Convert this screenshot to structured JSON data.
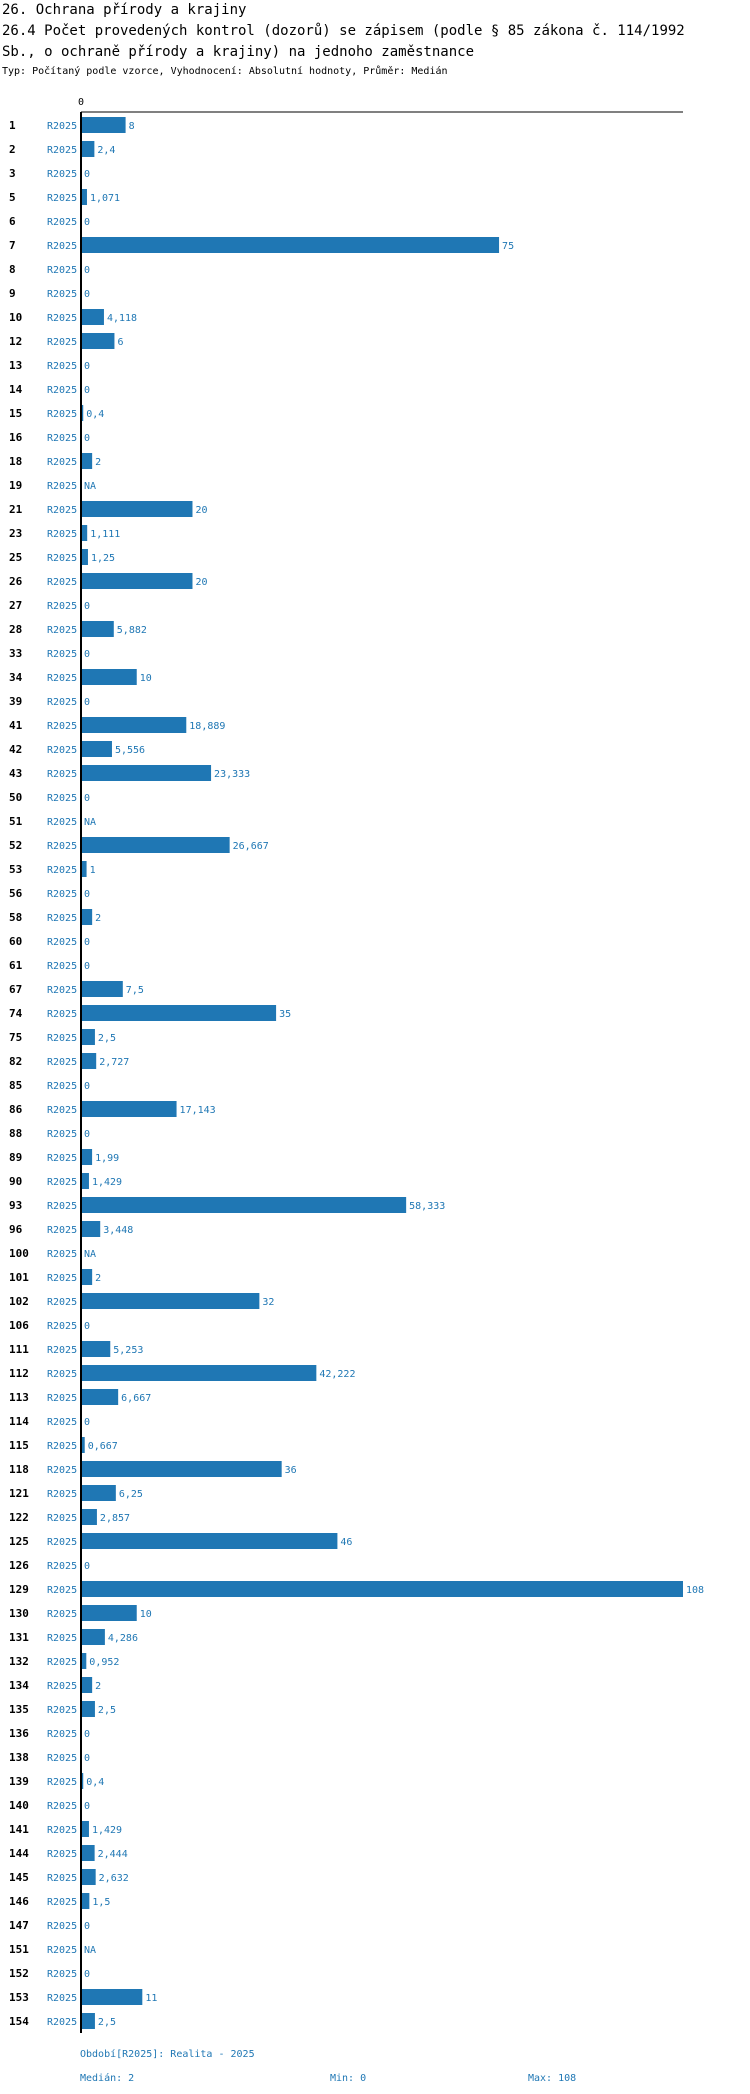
{
  "header": {
    "title_line1": "26. Ochrana přírody a krajiny",
    "title_line2": "26.4 Počet provedených kontrol (dozorů) se zápisem (podle § 85 zákona č. 114/1992",
    "title_line3": " Sb., o ochraně přírody a krajiny) na jednoho zaměstnance",
    "subtitle": "Typ: Počítaný podle vzorce, Vyhodnocení: Absolutní hodnoty, Průměr: Medián"
  },
  "chart_data": {
    "type": "bar",
    "orientation": "horizontal",
    "series_label": "R2025",
    "axis_zero_label": "0",
    "xlim": [
      0,
      108
    ],
    "colors": {
      "bar": "#1f77b4",
      "label": "#1f77b4"
    },
    "rows": [
      {
        "cat": "1",
        "value": 8,
        "label": "8"
      },
      {
        "cat": "2",
        "value": 2.4,
        "label": "2,4"
      },
      {
        "cat": "3",
        "value": 0,
        "label": "0"
      },
      {
        "cat": "5",
        "value": 1.071,
        "label": "1,071"
      },
      {
        "cat": "6",
        "value": 0,
        "label": "0"
      },
      {
        "cat": "7",
        "value": 75,
        "label": "75"
      },
      {
        "cat": "8",
        "value": 0,
        "label": "0"
      },
      {
        "cat": "9",
        "value": 0,
        "label": "0"
      },
      {
        "cat": "10",
        "value": 4.118,
        "label": "4,118"
      },
      {
        "cat": "12",
        "value": 6,
        "label": "6"
      },
      {
        "cat": "13",
        "value": 0,
        "label": "0"
      },
      {
        "cat": "14",
        "value": 0,
        "label": "0"
      },
      {
        "cat": "15",
        "value": 0.4,
        "label": "0,4"
      },
      {
        "cat": "16",
        "value": 0,
        "label": "0"
      },
      {
        "cat": "18",
        "value": 2,
        "label": "2"
      },
      {
        "cat": "19",
        "value": null,
        "label": "NA"
      },
      {
        "cat": "21",
        "value": 20,
        "label": "20"
      },
      {
        "cat": "23",
        "value": 1.111,
        "label": "1,111"
      },
      {
        "cat": "25",
        "value": 1.25,
        "label": "1,25"
      },
      {
        "cat": "26",
        "value": 20,
        "label": "20"
      },
      {
        "cat": "27",
        "value": 0,
        "label": "0"
      },
      {
        "cat": "28",
        "value": 5.882,
        "label": "5,882"
      },
      {
        "cat": "33",
        "value": 0,
        "label": "0"
      },
      {
        "cat": "34",
        "value": 10,
        "label": "10"
      },
      {
        "cat": "39",
        "value": 0,
        "label": "0"
      },
      {
        "cat": "41",
        "value": 18.889,
        "label": "18,889"
      },
      {
        "cat": "42",
        "value": 5.556,
        "label": "5,556"
      },
      {
        "cat": "43",
        "value": 23.333,
        "label": "23,333"
      },
      {
        "cat": "50",
        "value": 0,
        "label": "0"
      },
      {
        "cat": "51",
        "value": null,
        "label": "NA"
      },
      {
        "cat": "52",
        "value": 26.667,
        "label": "26,667"
      },
      {
        "cat": "53",
        "value": 1,
        "label": "1"
      },
      {
        "cat": "56",
        "value": 0,
        "label": "0"
      },
      {
        "cat": "58",
        "value": 2,
        "label": "2"
      },
      {
        "cat": "60",
        "value": 0,
        "label": "0"
      },
      {
        "cat": "61",
        "value": 0,
        "label": "0"
      },
      {
        "cat": "67",
        "value": 7.5,
        "label": "7,5"
      },
      {
        "cat": "74",
        "value": 35,
        "label": "35"
      },
      {
        "cat": "75",
        "value": 2.5,
        "label": "2,5"
      },
      {
        "cat": "82",
        "value": 2.727,
        "label": "2,727"
      },
      {
        "cat": "85",
        "value": 0,
        "label": "0"
      },
      {
        "cat": "86",
        "value": 17.143,
        "label": "17,143"
      },
      {
        "cat": "88",
        "value": 0,
        "label": "0"
      },
      {
        "cat": "89",
        "value": 1.99,
        "label": "1,99"
      },
      {
        "cat": "90",
        "value": 1.429,
        "label": "1,429"
      },
      {
        "cat": "93",
        "value": 58.333,
        "label": "58,333"
      },
      {
        "cat": "96",
        "value": 3.448,
        "label": "3,448"
      },
      {
        "cat": "100",
        "value": null,
        "label": "NA"
      },
      {
        "cat": "101",
        "value": 2,
        "label": "2"
      },
      {
        "cat": "102",
        "value": 32,
        "label": "32"
      },
      {
        "cat": "106",
        "value": 0,
        "label": "0"
      },
      {
        "cat": "111",
        "value": 5.253,
        "label": "5,253"
      },
      {
        "cat": "112",
        "value": 42.222,
        "label": "42,222"
      },
      {
        "cat": "113",
        "value": 6.667,
        "label": "6,667"
      },
      {
        "cat": "114",
        "value": 0,
        "label": "0"
      },
      {
        "cat": "115",
        "value": 0.667,
        "label": "0,667"
      },
      {
        "cat": "118",
        "value": 36,
        "label": "36"
      },
      {
        "cat": "121",
        "value": 6.25,
        "label": "6,25"
      },
      {
        "cat": "122",
        "value": 2.857,
        "label": "2,857"
      },
      {
        "cat": "125",
        "value": 46,
        "label": "46"
      },
      {
        "cat": "126",
        "value": 0,
        "label": "0"
      },
      {
        "cat": "129",
        "value": 108,
        "label": "108"
      },
      {
        "cat": "130",
        "value": 10,
        "label": "10"
      },
      {
        "cat": "131",
        "value": 4.286,
        "label": "4,286"
      },
      {
        "cat": "132",
        "value": 0.952,
        "label": "0,952"
      },
      {
        "cat": "134",
        "value": 2,
        "label": "2"
      },
      {
        "cat": "135",
        "value": 2.5,
        "label": "2,5"
      },
      {
        "cat": "136",
        "value": 0,
        "label": "0"
      },
      {
        "cat": "138",
        "value": 0,
        "label": "0"
      },
      {
        "cat": "139",
        "value": 0.4,
        "label": "0,4"
      },
      {
        "cat": "140",
        "value": 0,
        "label": "0"
      },
      {
        "cat": "141",
        "value": 1.429,
        "label": "1,429"
      },
      {
        "cat": "144",
        "value": 2.444,
        "label": "2,444"
      },
      {
        "cat": "145",
        "value": 2.632,
        "label": "2,632"
      },
      {
        "cat": "146",
        "value": 1.5,
        "label": "1,5"
      },
      {
        "cat": "147",
        "value": 0,
        "label": "0"
      },
      {
        "cat": "151",
        "value": null,
        "label": "NA"
      },
      {
        "cat": "152",
        "value": 0,
        "label": "0"
      },
      {
        "cat": "153",
        "value": 11,
        "label": "11"
      },
      {
        "cat": "154",
        "value": 2.5,
        "label": "2,5"
      }
    ]
  },
  "footer": {
    "period": "Období[R2025]: Realita - 2025",
    "median": "Medián: 2",
    "min": "Min: 0",
    "max": "Max: 108"
  }
}
